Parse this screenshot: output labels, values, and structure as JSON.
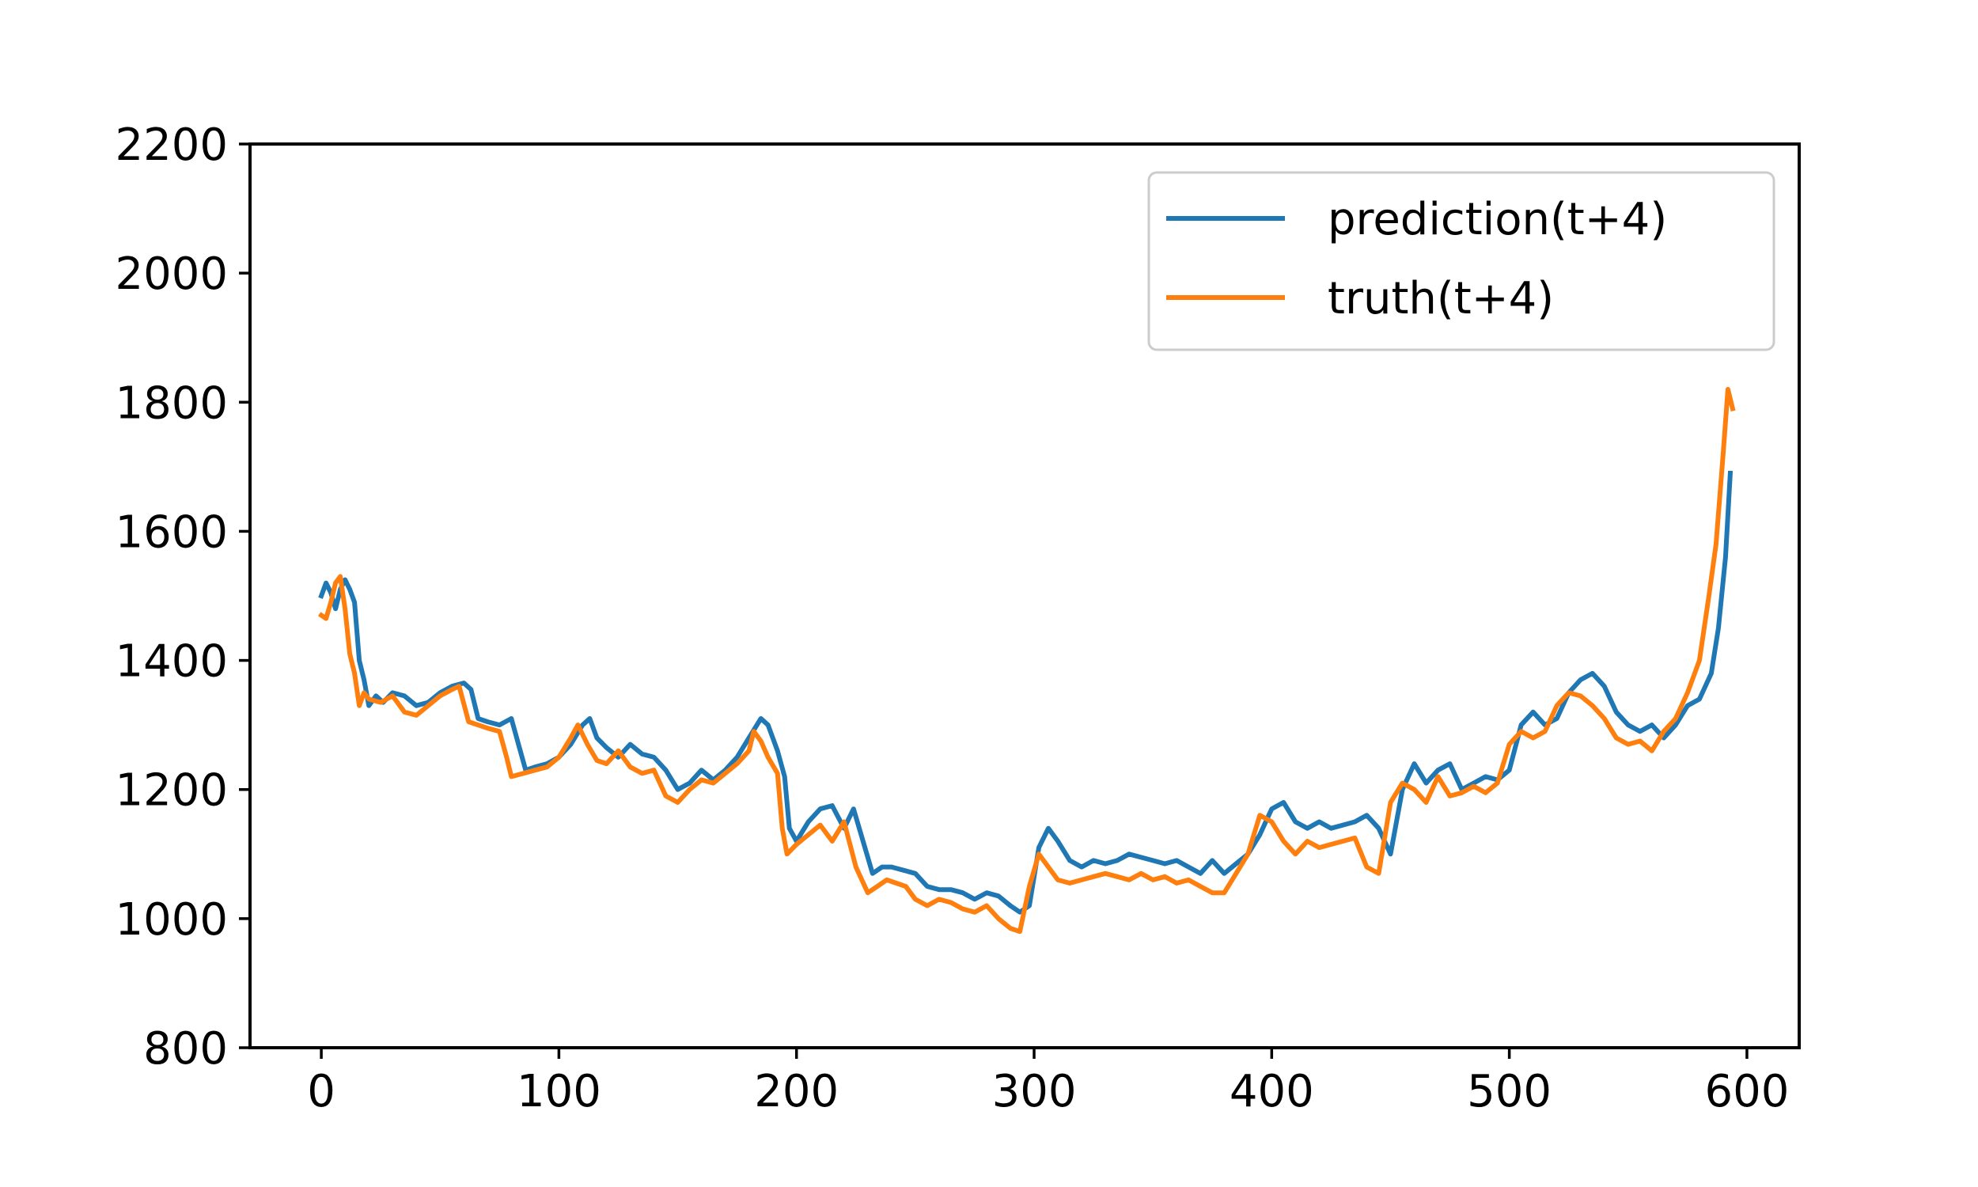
{
  "chart_data": {
    "type": "line",
    "title": "",
    "xlabel": "",
    "ylabel": "",
    "xlim": [
      -30,
      622
    ],
    "ylim": [
      800,
      2200
    ],
    "x_ticks": [
      0,
      100,
      200,
      300,
      400,
      500,
      600
    ],
    "y_ticks": [
      800,
      1000,
      1200,
      1400,
      1600,
      1800,
      2000,
      2200
    ],
    "grid": false,
    "legend_placement": "top-right",
    "series": [
      {
        "name": "prediction(t+4)",
        "color": "#1f77b4",
        "points": [
          [
            0,
            1500
          ],
          [
            2,
            1520
          ],
          [
            4,
            1505
          ],
          [
            6,
            1480
          ],
          [
            8,
            1510
          ],
          [
            10,
            1525
          ],
          [
            12,
            1510
          ],
          [
            14,
            1490
          ],
          [
            16,
            1400
          ],
          [
            18,
            1370
          ],
          [
            20,
            1330
          ],
          [
            23,
            1345
          ],
          [
            26,
            1335
          ],
          [
            30,
            1350
          ],
          [
            35,
            1345
          ],
          [
            40,
            1330
          ],
          [
            45,
            1335
          ],
          [
            50,
            1350
          ],
          [
            55,
            1360
          ],
          [
            60,
            1365
          ],
          [
            63,
            1355
          ],
          [
            66,
            1310
          ],
          [
            70,
            1305
          ],
          [
            75,
            1300
          ],
          [
            80,
            1310
          ],
          [
            83,
            1270
          ],
          [
            86,
            1230
          ],
          [
            90,
            1235
          ],
          [
            95,
            1240
          ],
          [
            100,
            1250
          ],
          [
            105,
            1270
          ],
          [
            110,
            1300
          ],
          [
            113,
            1310
          ],
          [
            116,
            1280
          ],
          [
            120,
            1265
          ],
          [
            125,
            1250
          ],
          [
            130,
            1270
          ],
          [
            135,
            1255
          ],
          [
            140,
            1250
          ],
          [
            145,
            1230
          ],
          [
            150,
            1200
          ],
          [
            155,
            1210
          ],
          [
            160,
            1230
          ],
          [
            165,
            1215
          ],
          [
            170,
            1230
          ],
          [
            175,
            1250
          ],
          [
            180,
            1280
          ],
          [
            185,
            1310
          ],
          [
            188,
            1300
          ],
          [
            192,
            1260
          ],
          [
            195,
            1220
          ],
          [
            197,
            1140
          ],
          [
            200,
            1120
          ],
          [
            205,
            1150
          ],
          [
            210,
            1170
          ],
          [
            215,
            1175
          ],
          [
            220,
            1140
          ],
          [
            224,
            1170
          ],
          [
            228,
            1120
          ],
          [
            232,
            1070
          ],
          [
            236,
            1080
          ],
          [
            240,
            1080
          ],
          [
            245,
            1075
          ],
          [
            250,
            1070
          ],
          [
            255,
            1050
          ],
          [
            260,
            1045
          ],
          [
            265,
            1045
          ],
          [
            270,
            1040
          ],
          [
            275,
            1030
          ],
          [
            280,
            1040
          ],
          [
            285,
            1035
          ],
          [
            290,
            1020
          ],
          [
            294,
            1010
          ],
          [
            298,
            1020
          ],
          [
            302,
            1110
          ],
          [
            306,
            1140
          ],
          [
            310,
            1120
          ],
          [
            315,
            1090
          ],
          [
            320,
            1080
          ],
          [
            325,
            1090
          ],
          [
            330,
            1085
          ],
          [
            335,
            1090
          ],
          [
            340,
            1100
          ],
          [
            345,
            1095
          ],
          [
            350,
            1090
          ],
          [
            355,
            1085
          ],
          [
            360,
            1090
          ],
          [
            365,
            1080
          ],
          [
            370,
            1070
          ],
          [
            375,
            1090
          ],
          [
            380,
            1070
          ],
          [
            385,
            1085
          ],
          [
            390,
            1100
          ],
          [
            395,
            1130
          ],
          [
            400,
            1170
          ],
          [
            405,
            1180
          ],
          [
            410,
            1150
          ],
          [
            415,
            1140
          ],
          [
            420,
            1150
          ],
          [
            425,
            1140
          ],
          [
            430,
            1145
          ],
          [
            435,
            1150
          ],
          [
            440,
            1160
          ],
          [
            445,
            1140
          ],
          [
            450,
            1100
          ],
          [
            455,
            1200
          ],
          [
            460,
            1240
          ],
          [
            465,
            1210
          ],
          [
            470,
            1230
          ],
          [
            475,
            1240
          ],
          [
            480,
            1200
          ],
          [
            485,
            1210
          ],
          [
            490,
            1220
          ],
          [
            495,
            1215
          ],
          [
            500,
            1230
          ],
          [
            505,
            1300
          ],
          [
            510,
            1320
          ],
          [
            515,
            1300
          ],
          [
            520,
            1310
          ],
          [
            525,
            1350
          ],
          [
            530,
            1370
          ],
          [
            535,
            1380
          ],
          [
            540,
            1360
          ],
          [
            545,
            1320
          ],
          [
            550,
            1300
          ],
          [
            555,
            1290
          ],
          [
            560,
            1300
          ],
          [
            565,
            1280
          ],
          [
            570,
            1300
          ],
          [
            575,
            1330
          ],
          [
            580,
            1340
          ],
          [
            585,
            1380
          ],
          [
            588,
            1450
          ],
          [
            591,
            1560
          ],
          [
            593,
            1690
          ]
        ]
      },
      {
        "name": "truth(t+4)",
        "color": "#ff7f0e",
        "points": [
          [
            0,
            1470
          ],
          [
            2,
            1465
          ],
          [
            4,
            1490
          ],
          [
            6,
            1520
          ],
          [
            8,
            1530
          ],
          [
            10,
            1480
          ],
          [
            12,
            1410
          ],
          [
            14,
            1380
          ],
          [
            16,
            1330
          ],
          [
            18,
            1350
          ],
          [
            20,
            1340
          ],
          [
            25,
            1335
          ],
          [
            30,
            1345
          ],
          [
            35,
            1320
          ],
          [
            40,
            1315
          ],
          [
            45,
            1330
          ],
          [
            50,
            1345
          ],
          [
            55,
            1355
          ],
          [
            58,
            1360
          ],
          [
            62,
            1305
          ],
          [
            66,
            1300
          ],
          [
            70,
            1295
          ],
          [
            75,
            1290
          ],
          [
            78,
            1250
          ],
          [
            80,
            1220
          ],
          [
            85,
            1225
          ],
          [
            90,
            1230
          ],
          [
            95,
            1235
          ],
          [
            100,
            1250
          ],
          [
            105,
            1280
          ],
          [
            108,
            1300
          ],
          [
            112,
            1270
          ],
          [
            116,
            1245
          ],
          [
            120,
            1240
          ],
          [
            125,
            1260
          ],
          [
            130,
            1235
          ],
          [
            135,
            1225
          ],
          [
            140,
            1230
          ],
          [
            145,
            1190
          ],
          [
            150,
            1180
          ],
          [
            155,
            1200
          ],
          [
            160,
            1215
          ],
          [
            165,
            1210
          ],
          [
            170,
            1225
          ],
          [
            175,
            1240
          ],
          [
            180,
            1260
          ],
          [
            182,
            1290
          ],
          [
            185,
            1275
          ],
          [
            188,
            1250
          ],
          [
            192,
            1225
          ],
          [
            194,
            1140
          ],
          [
            196,
            1100
          ],
          [
            200,
            1115
          ],
          [
            205,
            1130
          ],
          [
            210,
            1145
          ],
          [
            215,
            1120
          ],
          [
            220,
            1150
          ],
          [
            225,
            1080
          ],
          [
            230,
            1040
          ],
          [
            234,
            1050
          ],
          [
            238,
            1060
          ],
          [
            242,
            1055
          ],
          [
            246,
            1050
          ],
          [
            250,
            1030
          ],
          [
            255,
            1020
          ],
          [
            260,
            1030
          ],
          [
            265,
            1025
          ],
          [
            270,
            1015
          ],
          [
            275,
            1010
          ],
          [
            280,
            1020
          ],
          [
            285,
            1000
          ],
          [
            290,
            985
          ],
          [
            294,
            980
          ],
          [
            298,
            1050
          ],
          [
            302,
            1100
          ],
          [
            306,
            1080
          ],
          [
            310,
            1060
          ],
          [
            315,
            1055
          ],
          [
            320,
            1060
          ],
          [
            325,
            1065
          ],
          [
            330,
            1070
          ],
          [
            335,
            1065
          ],
          [
            340,
            1060
          ],
          [
            345,
            1070
          ],
          [
            350,
            1060
          ],
          [
            355,
            1065
          ],
          [
            360,
            1055
          ],
          [
            365,
            1060
          ],
          [
            370,
            1050
          ],
          [
            375,
            1040
          ],
          [
            380,
            1040
          ],
          [
            385,
            1070
          ],
          [
            390,
            1100
          ],
          [
            395,
            1160
          ],
          [
            400,
            1150
          ],
          [
            405,
            1120
          ],
          [
            410,
            1100
          ],
          [
            415,
            1120
          ],
          [
            420,
            1110
          ],
          [
            425,
            1115
          ],
          [
            430,
            1120
          ],
          [
            435,
            1125
          ],
          [
            440,
            1080
          ],
          [
            445,
            1070
          ],
          [
            450,
            1180
          ],
          [
            455,
            1210
          ],
          [
            460,
            1200
          ],
          [
            465,
            1180
          ],
          [
            470,
            1220
          ],
          [
            475,
            1190
          ],
          [
            480,
            1195
          ],
          [
            485,
            1205
          ],
          [
            490,
            1195
          ],
          [
            495,
            1210
          ],
          [
            500,
            1270
          ],
          [
            505,
            1290
          ],
          [
            510,
            1280
          ],
          [
            515,
            1290
          ],
          [
            520,
            1330
          ],
          [
            525,
            1350
          ],
          [
            530,
            1345
          ],
          [
            535,
            1330
          ],
          [
            540,
            1310
          ],
          [
            545,
            1280
          ],
          [
            550,
            1270
          ],
          [
            555,
            1275
          ],
          [
            560,
            1260
          ],
          [
            565,
            1290
          ],
          [
            570,
            1310
          ],
          [
            575,
            1350
          ],
          [
            580,
            1400
          ],
          [
            584,
            1500
          ],
          [
            587,
            1580
          ],
          [
            590,
            1720
          ],
          [
            592,
            1820
          ],
          [
            594,
            1790
          ]
        ]
      }
    ]
  }
}
